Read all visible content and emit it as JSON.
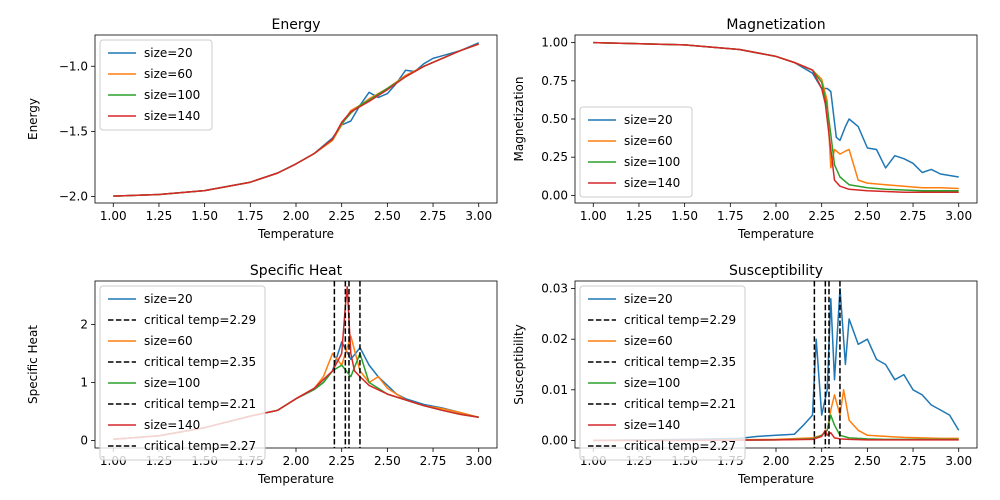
{
  "chart_data": [
    {
      "type": "line",
      "title": "Energy",
      "xlabel": "Temperature",
      "ylabel": "Energy",
      "xlim": [
        0.9,
        3.1
      ],
      "ylim": [
        -2.05,
        -0.76
      ],
      "xticks": [
        "1.00",
        "1.25",
        "1.50",
        "1.75",
        "2.00",
        "2.25",
        "2.50",
        "2.75",
        "3.00"
      ],
      "yticks": [
        "−2.0",
        "−1.5",
        "−1.0"
      ],
      "ytick_values": [
        -2.0,
        -1.5,
        -1.0
      ],
      "legend_position": "upper left",
      "series": [
        {
          "name": "size=20",
          "color": "#1f77b4",
          "x": [
            1.0,
            1.25,
            1.5,
            1.75,
            1.9,
            2.0,
            2.1,
            2.2,
            2.25,
            2.3,
            2.35,
            2.4,
            2.45,
            2.5,
            2.55,
            2.6,
            2.65,
            2.7,
            2.75,
            2.8,
            2.9,
            3.0
          ],
          "y": [
            -1.997,
            -1.985,
            -1.955,
            -1.89,
            -1.82,
            -1.75,
            -1.67,
            -1.55,
            -1.45,
            -1.42,
            -1.3,
            -1.2,
            -1.24,
            -1.21,
            -1.13,
            -1.03,
            -1.04,
            -0.98,
            -0.94,
            -0.92,
            -0.88,
            -0.82
          ]
        },
        {
          "name": "size=60",
          "color": "#ff7f0e",
          "x": [
            1.0,
            1.25,
            1.5,
            1.75,
            1.9,
            2.0,
            2.1,
            2.2,
            2.25,
            2.3,
            2.35,
            2.4,
            2.5,
            2.6,
            2.7,
            2.8,
            2.9,
            3.0
          ],
          "y": [
            -1.997,
            -1.985,
            -1.955,
            -1.89,
            -1.82,
            -1.75,
            -1.67,
            -1.57,
            -1.45,
            -1.34,
            -1.3,
            -1.25,
            -1.17,
            -1.07,
            -1.0,
            -0.94,
            -0.88,
            -0.83
          ]
        },
        {
          "name": "size=100",
          "color": "#2ca02c",
          "x": [
            1.0,
            1.25,
            1.5,
            1.75,
            1.9,
            2.0,
            2.1,
            2.2,
            2.25,
            2.3,
            2.35,
            2.4,
            2.5,
            2.6,
            2.7,
            2.8,
            2.9,
            3.0
          ],
          "y": [
            -1.997,
            -1.985,
            -1.955,
            -1.89,
            -1.82,
            -1.75,
            -1.67,
            -1.56,
            -1.44,
            -1.36,
            -1.3,
            -1.26,
            -1.17,
            -1.08,
            -1.0,
            -0.94,
            -0.88,
            -0.83
          ]
        },
        {
          "name": "size=140",
          "color": "#d62728",
          "x": [
            1.0,
            1.25,
            1.5,
            1.75,
            1.9,
            2.0,
            2.1,
            2.2,
            2.25,
            2.3,
            2.35,
            2.4,
            2.5,
            2.6,
            2.7,
            2.8,
            2.9,
            3.0
          ],
          "y": [
            -1.997,
            -1.985,
            -1.955,
            -1.89,
            -1.82,
            -1.75,
            -1.67,
            -1.56,
            -1.43,
            -1.35,
            -1.31,
            -1.27,
            -1.18,
            -1.08,
            -1.0,
            -0.94,
            -0.88,
            -0.83
          ]
        }
      ]
    },
    {
      "type": "line",
      "title": "Magnetization",
      "xlabel": "Temperature",
      "ylabel": "Magnetization",
      "xlim": [
        0.9,
        3.1
      ],
      "ylim": [
        -0.05,
        1.05
      ],
      "xticks": [
        "1.00",
        "1.25",
        "1.50",
        "1.75",
        "2.00",
        "2.25",
        "2.50",
        "2.75",
        "3.00"
      ],
      "yticks": [
        "0.00",
        "0.25",
        "0.50",
        "0.75",
        "1.00"
      ],
      "ytick_values": [
        0,
        0.25,
        0.5,
        0.75,
        1.0
      ],
      "legend_position": "lower left",
      "series": [
        {
          "name": "size=20",
          "color": "#1f77b4",
          "x": [
            1.0,
            1.5,
            1.8,
            2.0,
            2.1,
            2.2,
            2.25,
            2.28,
            2.3,
            2.33,
            2.35,
            2.38,
            2.4,
            2.45,
            2.5,
            2.55,
            2.6,
            2.65,
            2.7,
            2.75,
            2.8,
            2.85,
            2.9,
            2.95,
            3.0
          ],
          "y": [
            1.0,
            0.985,
            0.955,
            0.91,
            0.87,
            0.8,
            0.7,
            0.7,
            0.68,
            0.38,
            0.36,
            0.45,
            0.5,
            0.45,
            0.31,
            0.3,
            0.18,
            0.26,
            0.24,
            0.21,
            0.15,
            0.17,
            0.14,
            0.13,
            0.12
          ]
        },
        {
          "name": "size=60",
          "color": "#ff7f0e",
          "x": [
            1.0,
            1.5,
            1.8,
            2.0,
            2.1,
            2.2,
            2.25,
            2.28,
            2.3,
            2.32,
            2.35,
            2.38,
            2.4,
            2.45,
            2.5,
            2.6,
            2.7,
            2.8,
            2.9,
            3.0
          ],
          "y": [
            1.0,
            0.985,
            0.955,
            0.91,
            0.87,
            0.82,
            0.76,
            0.62,
            0.18,
            0.3,
            0.27,
            0.29,
            0.3,
            0.1,
            0.08,
            0.07,
            0.06,
            0.05,
            0.05,
            0.045
          ]
        },
        {
          "name": "size=100",
          "color": "#2ca02c",
          "x": [
            1.0,
            1.5,
            1.8,
            2.0,
            2.1,
            2.2,
            2.25,
            2.28,
            2.3,
            2.32,
            2.35,
            2.4,
            2.5,
            2.6,
            2.7,
            2.8,
            2.9,
            3.0
          ],
          "y": [
            1.0,
            0.985,
            0.955,
            0.91,
            0.87,
            0.82,
            0.74,
            0.58,
            0.4,
            0.2,
            0.12,
            0.07,
            0.05,
            0.04,
            0.035,
            0.03,
            0.03,
            0.03
          ]
        },
        {
          "name": "size=140",
          "color": "#d62728",
          "x": [
            1.0,
            1.5,
            1.8,
            2.0,
            2.1,
            2.2,
            2.25,
            2.27,
            2.3,
            2.32,
            2.35,
            2.4,
            2.5,
            2.6,
            2.7,
            2.8,
            2.9,
            3.0
          ],
          "y": [
            1.0,
            0.985,
            0.955,
            0.91,
            0.87,
            0.82,
            0.7,
            0.6,
            0.3,
            0.1,
            0.06,
            0.04,
            0.03,
            0.025,
            0.02,
            0.02,
            0.02,
            0.02
          ]
        }
      ]
    },
    {
      "type": "line",
      "title": "Specific Heat",
      "xlabel": "Temperature",
      "ylabel": "Specific Heat",
      "xlim": [
        0.9,
        3.1
      ],
      "ylim": [
        -0.13,
        2.75
      ],
      "xticks": [
        "1.00",
        "1.25",
        "1.50",
        "1.75",
        "2.00",
        "2.25",
        "2.50",
        "2.75",
        "3.00"
      ],
      "yticks": [
        "0",
        "1",
        "2"
      ],
      "ytick_values": [
        0,
        1,
        2
      ],
      "legend_position": "upper left",
      "legend": [
        {
          "label": "size=20",
          "color": "#1f77b4",
          "style": "solid"
        },
        {
          "label": "critical temp=2.29",
          "color": "#000000",
          "style": "dashed"
        },
        {
          "label": "size=60",
          "color": "#ff7f0e",
          "style": "solid"
        },
        {
          "label": "critical temp=2.35",
          "color": "#000000",
          "style": "dashed"
        },
        {
          "label": "size=100",
          "color": "#2ca02c",
          "style": "solid"
        },
        {
          "label": "critical temp=2.21",
          "color": "#000000",
          "style": "dashed"
        },
        {
          "label": "size=140",
          "color": "#d62728",
          "style": "solid"
        },
        {
          "label": "critical temp=2.27",
          "color": "#000000",
          "style": "dashed"
        }
      ],
      "vlines": [
        2.29,
        2.35,
        2.21,
        2.27
      ],
      "series": [
        {
          "name": "size=20",
          "color": "#1f77b4",
          "x": [
            1.0,
            1.25,
            1.5,
            1.75,
            1.9,
            2.0,
            2.1,
            2.15,
            2.2,
            2.25,
            2.3,
            2.35,
            2.4,
            2.45,
            2.5,
            2.55,
            2.6,
            2.7,
            2.8,
            2.9,
            3.0
          ],
          "y": [
            0.02,
            0.08,
            0.22,
            0.42,
            0.52,
            0.72,
            0.88,
            1.0,
            1.2,
            1.7,
            1.4,
            1.6,
            1.3,
            1.1,
            0.95,
            0.8,
            0.72,
            0.62,
            0.56,
            0.48,
            0.4
          ]
        },
        {
          "name": "size=60",
          "color": "#ff7f0e",
          "x": [
            1.0,
            1.25,
            1.5,
            1.75,
            1.9,
            2.0,
            2.1,
            2.15,
            2.2,
            2.25,
            2.3,
            2.35,
            2.4,
            2.45,
            2.5,
            2.6,
            2.7,
            2.8,
            2.9,
            3.0
          ],
          "y": [
            0.02,
            0.08,
            0.22,
            0.42,
            0.52,
            0.72,
            0.9,
            1.1,
            1.5,
            1.3,
            1.8,
            1.2,
            1.0,
            1.1,
            0.9,
            0.7,
            0.6,
            0.55,
            0.48,
            0.4
          ]
        },
        {
          "name": "size=100",
          "color": "#2ca02c",
          "x": [
            1.0,
            1.25,
            1.5,
            1.75,
            1.9,
            2.0,
            2.1,
            2.15,
            2.2,
            2.25,
            2.3,
            2.35,
            2.38,
            2.4,
            2.45,
            2.5,
            2.6,
            2.7,
            2.8,
            2.9,
            3.0
          ],
          "y": [
            0.02,
            0.08,
            0.22,
            0.42,
            0.52,
            0.72,
            0.88,
            1.0,
            1.2,
            1.3,
            1.1,
            1.5,
            1.2,
            1.0,
            0.9,
            0.8,
            0.7,
            0.6,
            0.52,
            0.45,
            0.4
          ]
        },
        {
          "name": "size=140",
          "color": "#d62728",
          "x": [
            1.0,
            1.25,
            1.5,
            1.75,
            1.9,
            2.0,
            2.1,
            2.15,
            2.2,
            2.25,
            2.27,
            2.28,
            2.3,
            2.32,
            2.35,
            2.4,
            2.5,
            2.6,
            2.7,
            2.8,
            2.9,
            3.0
          ],
          "y": [
            0.02,
            0.08,
            0.22,
            0.42,
            0.52,
            0.72,
            0.9,
            1.05,
            1.2,
            1.5,
            2.3,
            2.65,
            1.5,
            1.2,
            1.1,
            0.95,
            0.8,
            0.7,
            0.6,
            0.52,
            0.45,
            0.4
          ]
        }
      ]
    },
    {
      "type": "line",
      "title": "Susceptibility",
      "xlabel": "Temperature",
      "ylabel": "Susceptibility",
      "xlim": [
        0.9,
        3.1
      ],
      "ylim": [
        -0.0015,
        0.0315
      ],
      "xticks": [
        "1.00",
        "1.25",
        "1.50",
        "1.75",
        "2.00",
        "2.25",
        "2.50",
        "2.75",
        "3.00"
      ],
      "yticks": [
        "0.00",
        "0.01",
        "0.02",
        "0.03"
      ],
      "ytick_values": [
        0,
        0.01,
        0.02,
        0.03
      ],
      "legend_position": "upper left",
      "legend": [
        {
          "label": "size=20",
          "color": "#1f77b4",
          "style": "solid"
        },
        {
          "label": "critical temp=2.29",
          "color": "#000000",
          "style": "dashed"
        },
        {
          "label": "size=60",
          "color": "#ff7f0e",
          "style": "solid"
        },
        {
          "label": "critical temp=2.35",
          "color": "#000000",
          "style": "dashed"
        },
        {
          "label": "size=100",
          "color": "#2ca02c",
          "style": "solid"
        },
        {
          "label": "critical temp=2.21",
          "color": "#000000",
          "style": "dashed"
        },
        {
          "label": "size=140",
          "color": "#d62728",
          "style": "solid"
        },
        {
          "label": "critical temp=2.27",
          "color": "#000000",
          "style": "dashed"
        }
      ],
      "vlines": [
        2.29,
        2.35,
        2.21,
        2.27
      ],
      "series": [
        {
          "name": "size=20",
          "color": "#1f77b4",
          "x": [
            1.0,
            1.5,
            1.8,
            1.9,
            2.0,
            2.1,
            2.15,
            2.2,
            2.22,
            2.25,
            2.28,
            2.3,
            2.32,
            2.35,
            2.38,
            2.4,
            2.45,
            2.5,
            2.55,
            2.6,
            2.65,
            2.7,
            2.75,
            2.8,
            2.85,
            2.9,
            2.95,
            3.0
          ],
          "y": [
            0.0,
            0.0002,
            0.0004,
            0.0008,
            0.001,
            0.0012,
            0.003,
            0.005,
            0.02,
            0.005,
            0.01,
            0.028,
            0.012,
            0.03,
            0.015,
            0.024,
            0.019,
            0.02,
            0.016,
            0.015,
            0.012,
            0.013,
            0.01,
            0.009,
            0.007,
            0.006,
            0.005,
            0.002
          ]
        },
        {
          "name": "size=60",
          "color": "#ff7f0e",
          "x": [
            1.0,
            1.5,
            2.0,
            2.2,
            2.25,
            2.28,
            2.3,
            2.32,
            2.35,
            2.37,
            2.4,
            2.45,
            2.5,
            2.6,
            2.7,
            2.8,
            2.9,
            3.0
          ],
          "y": [
            0.0,
            0.0,
            0.0002,
            0.0005,
            0.001,
            0.002,
            0.006,
            0.009,
            0.005,
            0.01,
            0.004,
            0.002,
            0.001,
            0.0008,
            0.0006,
            0.0005,
            0.0004,
            0.0004
          ]
        },
        {
          "name": "size=100",
          "color": "#2ca02c",
          "x": [
            1.0,
            1.5,
            2.0,
            2.2,
            2.25,
            2.28,
            2.3,
            2.32,
            2.35,
            2.4,
            2.5,
            2.6,
            2.7,
            2.8,
            2.9,
            3.0
          ],
          "y": [
            0.0,
            0.0,
            0.0001,
            0.0003,
            0.001,
            0.002,
            0.005,
            0.003,
            0.001,
            0.0005,
            0.0003,
            0.0002,
            0.0002,
            0.0002,
            0.0002,
            0.0002
          ]
        },
        {
          "name": "size=140",
          "color": "#d62728",
          "x": [
            1.0,
            1.5,
            2.0,
            2.2,
            2.25,
            2.27,
            2.28,
            2.3,
            2.32,
            2.35,
            2.4,
            2.5,
            2.6,
            2.7,
            2.8,
            2.9,
            3.0
          ],
          "y": [
            0.0,
            0.0,
            0.0001,
            0.0002,
            0.0008,
            0.002,
            0.001,
            0.0015,
            0.0005,
            0.0003,
            0.0002,
            0.0001,
            0.0001,
            0.0001,
            0.0001,
            0.0001,
            0.0001
          ]
        }
      ]
    }
  ]
}
